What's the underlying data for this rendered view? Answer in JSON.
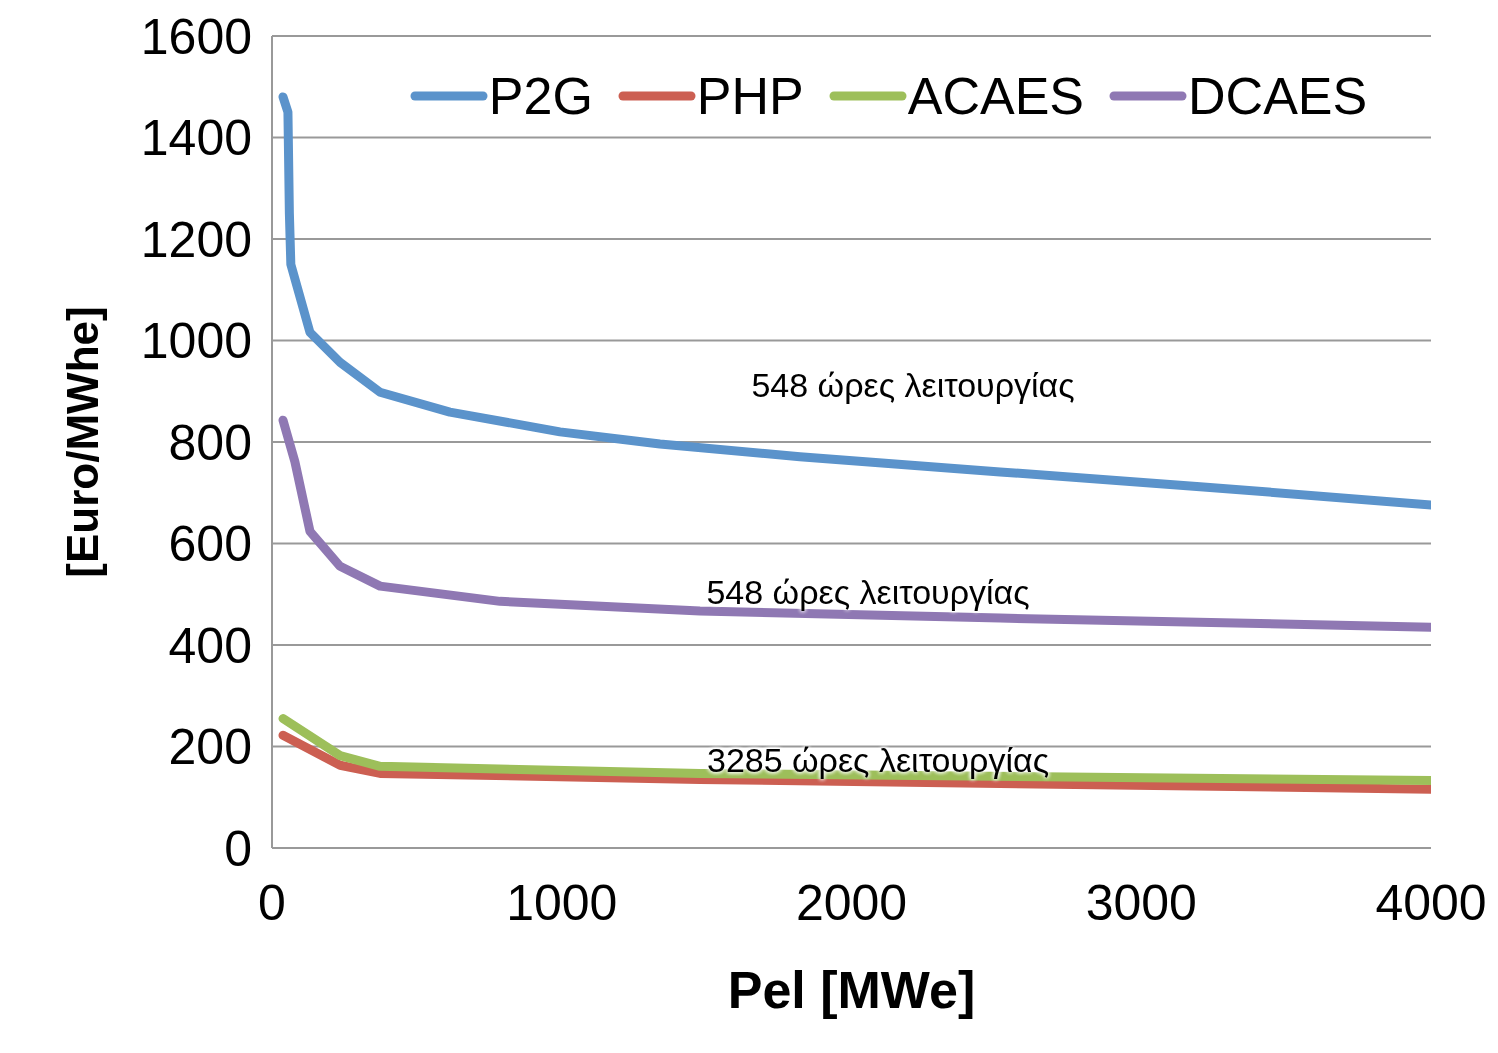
{
  "chart_data": {
    "type": "line",
    "xlabel": "Pel [MWe]",
    "ylabel": "[Euro/MWhe]",
    "xlim": [
      0,
      4000
    ],
    "xticks": [
      0,
      1000,
      2000,
      3000,
      4000
    ],
    "ylim": [
      0,
      1600
    ],
    "yticks": [
      0,
      200,
      400,
      600,
      800,
      1000,
      1200,
      1400,
      1600
    ],
    "grid": "y",
    "legend": "top",
    "marker": "none",
    "line_style": "solid",
    "series": [
      {
        "name": "P2G",
        "color": "#5b93cb",
        "x": [
          38,
          55,
          60,
          65,
          131,
          235,
          373,
          614,
          994,
          1339,
          1822,
          2513,
          3203,
          4000
        ],
        "values": [
          1480,
          1450,
          1250,
          1150,
          1016,
          957,
          898,
          859,
          820,
          796,
          771,
          741,
          712,
          676
        ]
      },
      {
        "name": "PHP",
        "color": "#cc5f52",
        "x": [
          38,
          235,
          373,
          1477,
          4000
        ],
        "values": [
          222,
          163,
          147,
          135,
          116
        ]
      },
      {
        "name": "ACAES",
        "color": "#9dbf5a",
        "x": [
          38,
          235,
          373,
          1477,
          4000
        ],
        "values": [
          255,
          182,
          161,
          147,
          133
        ]
      },
      {
        "name": "DCAES",
        "color": "#8f78b3",
        "x": [
          38,
          79,
          131,
          235,
          373,
          787,
          1477,
          2513,
          4000
        ],
        "values": [
          843,
          761,
          624,
          555,
          516,
          486,
          467,
          453,
          435
        ]
      }
    ],
    "annotations": [
      "548 ώρες λειτουργίας",
      "548 ώρες λειτουργίας",
      "3285 ώρες λειτουργίας"
    ]
  }
}
